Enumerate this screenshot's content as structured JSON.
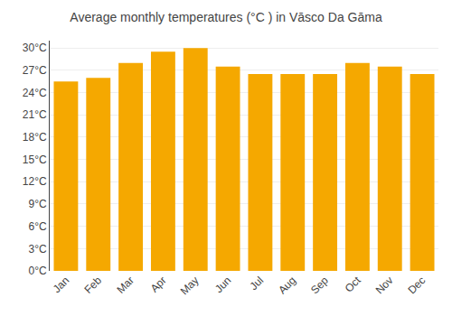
{
  "chart_data": {
    "type": "bar",
    "title": "Average monthly temperatures (°C ) in Vāsco Da Gāma",
    "categories": [
      "Jan",
      "Feb",
      "Mar",
      "Apr",
      "May",
      "Jun",
      "Jul",
      "Aug",
      "Sep",
      "Oct",
      "Nov",
      "Dec"
    ],
    "values": [
      25.5,
      26.0,
      28.0,
      29.5,
      30.0,
      27.5,
      26.5,
      26.5,
      26.5,
      28.0,
      27.5,
      26.5
    ],
    "color": "#F5A800",
    "ylim": [
      0,
      31
    ],
    "yticks": [
      {
        "value": 0,
        "label": "0°C"
      },
      {
        "value": 3,
        "label": "3°C"
      },
      {
        "value": 6,
        "label": "6°C"
      },
      {
        "value": 9,
        "label": "9°C"
      },
      {
        "value": 12,
        "label": "12°C"
      },
      {
        "value": 15,
        "label": "15°C"
      },
      {
        "value": 18,
        "label": "18°C"
      },
      {
        "value": 21,
        "label": "21°C"
      },
      {
        "value": 24,
        "label": "24°C"
      },
      {
        "value": 27,
        "label": "27°C"
      },
      {
        "value": 30,
        "label": "30°C"
      }
    ],
    "grid": true
  }
}
